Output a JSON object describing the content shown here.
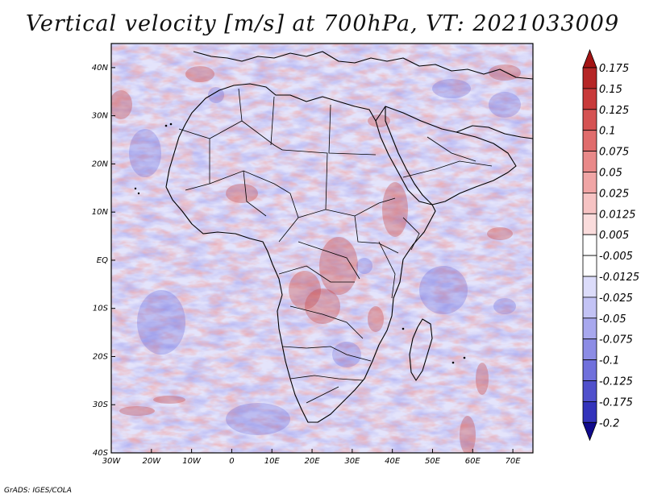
{
  "title": "Vertical velocity [m/s] at 700hPa, VT: 2021033009",
  "credit": "GrADS: IGES/COLA",
  "map": {
    "lon_range": [
      -30,
      75
    ],
    "lat_range": [
      -40,
      45
    ],
    "lon_ticks": [
      {
        "value": -30,
        "label": "30W"
      },
      {
        "value": -20,
        "label": "20W"
      },
      {
        "value": -10,
        "label": "10W"
      },
      {
        "value": 0,
        "label": "0"
      },
      {
        "value": 10,
        "label": "10E"
      },
      {
        "value": 20,
        "label": "20E"
      },
      {
        "value": 30,
        "label": "30E"
      },
      {
        "value": 40,
        "label": "40E"
      },
      {
        "value": 50,
        "label": "50E"
      },
      {
        "value": 60,
        "label": "60E"
      },
      {
        "value": 70,
        "label": "70E"
      }
    ],
    "lat_ticks": [
      {
        "value": 40,
        "label": "40N"
      },
      {
        "value": 30,
        "label": "30N"
      },
      {
        "value": 20,
        "label": "20N"
      },
      {
        "value": 10,
        "label": "10N"
      },
      {
        "value": 0,
        "label": "EQ"
      },
      {
        "value": -10,
        "label": "10S"
      },
      {
        "value": -20,
        "label": "20S"
      },
      {
        "value": -30,
        "label": "30S"
      },
      {
        "value": -40,
        "label": "40S"
      }
    ],
    "colors": {
      "rising": "#c94b4b",
      "sinking": "#5a5ad8",
      "neutral": "#ffffff"
    }
  },
  "colorbar": {
    "levels": [
      "0.175",
      "0.15",
      "0.125",
      "0.1",
      "0.075",
      "0.05",
      "0.025",
      "0.0125",
      "0.005",
      "-0.005",
      "-0.0125",
      "-0.025",
      "-0.05",
      "-0.075",
      "-0.1",
      "-0.125",
      "-0.175",
      "-0.2"
    ],
    "colors": [
      "#b52626",
      "#c83a3a",
      "#d55353",
      "#e06c6c",
      "#e98989",
      "#f0a5a5",
      "#f6c3c3",
      "#fadcdc",
      "#ffffff",
      "#ffffff",
      "#dcdcfa",
      "#c3c3f5",
      "#a8a8ee",
      "#8c8ce5",
      "#7070dc",
      "#5050cc",
      "#3333bb",
      "#1b1b9e"
    ],
    "top_color": "#a31414",
    "bottom_color": "#100a8c"
  }
}
